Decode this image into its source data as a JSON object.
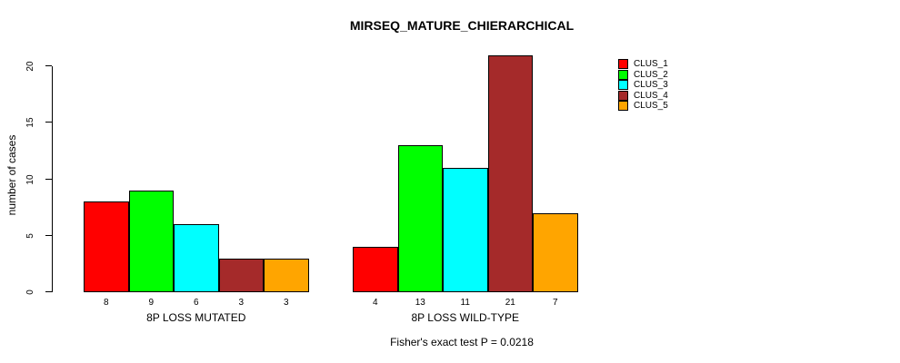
{
  "chart_data": {
    "type": "bar",
    "title": "MIRSEQ_MATURE_CHIERARCHICAL",
    "xlabel": "",
    "ylabel": "number of cases",
    "categories": [
      "8P LOSS MUTATED",
      "8P LOSS WILD-TYPE"
    ],
    "series": [
      {
        "name": "CLUS_1",
        "color": "#FF0000",
        "values": [
          8,
          4
        ]
      },
      {
        "name": "CLUS_2",
        "color": "#00FF00",
        "values": [
          9,
          13
        ]
      },
      {
        "name": "CLUS_3",
        "color": "#00FFFF",
        "values": [
          6,
          11
        ]
      },
      {
        "name": "CLUS_4",
        "color": "#A52A2A",
        "values": [
          3,
          21
        ]
      },
      {
        "name": "CLUS_5",
        "color": "#FFA500",
        "values": [
          3,
          7
        ]
      }
    ],
    "yticks": [
      0,
      5,
      10,
      15,
      20
    ],
    "ylim": [
      0,
      21
    ],
    "bar_labels_shown": true,
    "grid": false,
    "legend_position": "top-right-outside",
    "annotation": "Fisher's exact test P = 0.0218"
  }
}
